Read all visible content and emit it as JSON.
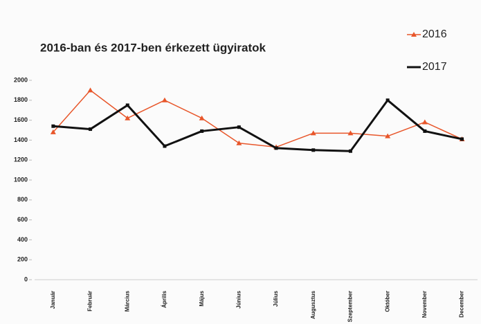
{
  "chart_data": {
    "type": "line",
    "title": "2016-ban és 2017-ben érkezett ügyiratok",
    "categories": [
      "Január",
      "Február",
      "Március",
      "Április",
      "Május",
      "Június",
      "Július",
      "Augusztus",
      "Szeptember",
      "Október",
      "November",
      "December"
    ],
    "series": [
      {
        "name": "2016",
        "color": "#e8562a",
        "values": [
          1480,
          1900,
          1620,
          1800,
          1620,
          1370,
          1330,
          1470,
          1470,
          1440,
          1580,
          1410
        ]
      },
      {
        "name": "2017",
        "color": "#111111",
        "values": [
          1540,
          1510,
          1750,
          1340,
          1490,
          1530,
          1320,
          1300,
          1290,
          1800,
          1490,
          1410
        ]
      }
    ],
    "ylim": [
      0,
      2000
    ],
    "yticks": [
      0,
      200,
      400,
      600,
      800,
      1000,
      1200,
      1400,
      1600,
      1800,
      2000
    ],
    "grid": false,
    "legend": "top-right"
  }
}
